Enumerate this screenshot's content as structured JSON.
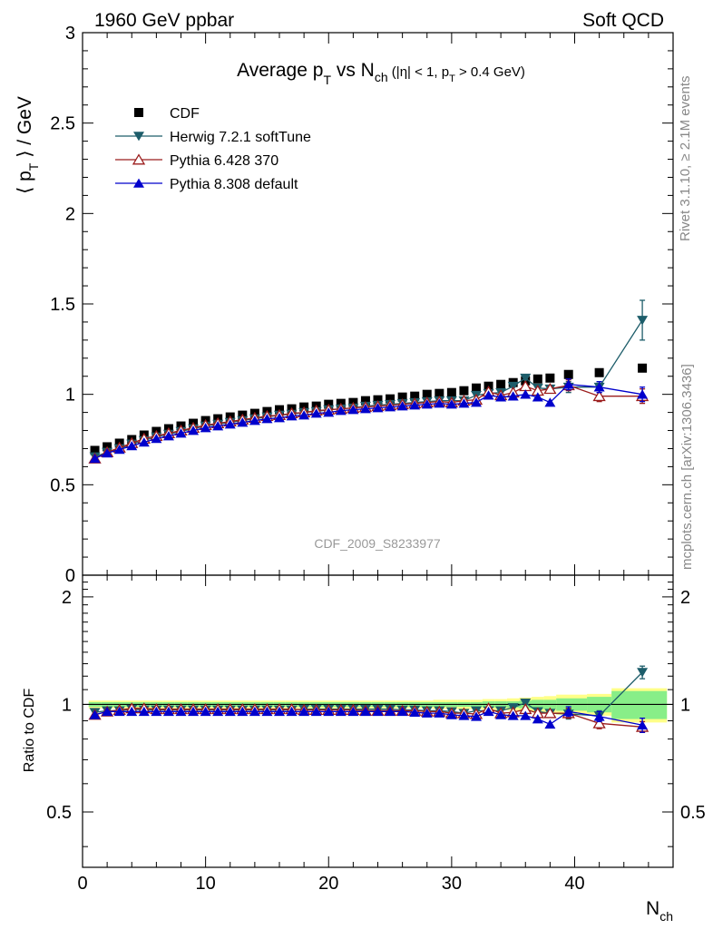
{
  "header": {
    "left": "1960 GeV ppbar",
    "right": "Soft QCD",
    "side_top": "Rivet 3.1.10, ≥ 2.1M events",
    "side_bottom": "mcplots.cern.ch [arXiv:1306.3436]",
    "watermark": "CDF_2009_S8233977"
  },
  "chart_data": [
    {
      "type": "scatter",
      "panel": "main",
      "title": "Average p_T vs N_ch (|η| < 1, p_T > 0.4 GeV)",
      "title_parts": {
        "main": "Average p",
        "sub1": "T",
        "mid": " vs N",
        "sub2": "ch",
        "cut": " (|η| < 1, p",
        "sub3": "T",
        "cut_end": " > 0.4 GeV)"
      },
      "ylabel": "⟨ p_T ⟩ / GeV",
      "ylim": [
        0,
        3
      ],
      "yticks": [
        "0",
        "0.5",
        "1",
        "1.5",
        "2",
        "2.5",
        "3"
      ],
      "xlim": [
        0,
        48
      ],
      "legend_placement": "top-left",
      "series": [
        {
          "name": "CDF",
          "marker": "square",
          "color": "#000000",
          "x": [
            1,
            2,
            3,
            4,
            5,
            6,
            7,
            8,
            9,
            10,
            11,
            12,
            13,
            14,
            15,
            16,
            17,
            18,
            19,
            20,
            21,
            22,
            23,
            24,
            25,
            26,
            27,
            28,
            29,
            30,
            31,
            32,
            33,
            34,
            35,
            36,
            37,
            38,
            39.5,
            42,
            45.5
          ],
          "y": [
            0.69,
            0.71,
            0.73,
            0.75,
            0.775,
            0.795,
            0.81,
            0.825,
            0.84,
            0.855,
            0.865,
            0.875,
            0.885,
            0.895,
            0.905,
            0.915,
            0.92,
            0.93,
            0.935,
            0.945,
            0.95,
            0.955,
            0.965,
            0.97,
            0.975,
            0.985,
            0.99,
            1.0,
            1.005,
            1.01,
            1.02,
            1.035,
            1.045,
            1.055,
            1.065,
            1.075,
            1.085,
            1.09,
            1.11,
            1.12,
            1.145
          ]
        },
        {
          "name": "Herwig 7.2.1 softTune",
          "marker": "triangle-down",
          "color": "#1d5d6a",
          "x": [
            1,
            2,
            3,
            4,
            5,
            6,
            7,
            8,
            9,
            10,
            11,
            12,
            13,
            14,
            15,
            16,
            17,
            18,
            19,
            20,
            21,
            22,
            23,
            24,
            25,
            26,
            27,
            28,
            29,
            30,
            31,
            32,
            33,
            34,
            35,
            36,
            37,
            38,
            39.5,
            42,
            45.5
          ],
          "y": [
            0.655,
            0.68,
            0.7,
            0.725,
            0.745,
            0.765,
            0.78,
            0.795,
            0.81,
            0.825,
            0.835,
            0.845,
            0.855,
            0.865,
            0.875,
            0.885,
            0.89,
            0.9,
            0.905,
            0.915,
            0.92,
            0.925,
            0.935,
            0.94,
            0.945,
            0.95,
            0.955,
            0.96,
            0.965,
            0.965,
            0.965,
            0.995,
            1.005,
            1.01,
            1.045,
            1.09,
            1.035,
            1.03,
            1.04,
            1.04,
            1.41
          ],
          "yerr": [
            0,
            0,
            0,
            0,
            0,
            0,
            0,
            0,
            0,
            0,
            0,
            0,
            0,
            0,
            0,
            0,
            0,
            0,
            0,
            0,
            0,
            0,
            0,
            0,
            0,
            0,
            0,
            0,
            0,
            0,
            0,
            0,
            0,
            0,
            0,
            0,
            0,
            0,
            0.03,
            0.03,
            0.11
          ]
        },
        {
          "name": "Pythia 6.428 370",
          "marker": "triangle-up-open",
          "color": "#9b1c1c",
          "x": [
            1,
            2,
            3,
            4,
            5,
            6,
            7,
            8,
            9,
            10,
            11,
            12,
            13,
            14,
            15,
            16,
            17,
            18,
            19,
            20,
            21,
            22,
            23,
            24,
            25,
            26,
            27,
            28,
            29,
            30,
            31,
            32,
            33,
            34,
            35,
            36,
            37,
            38,
            39.5,
            42,
            45.5
          ],
          "y": [
            0.645,
            0.68,
            0.705,
            0.73,
            0.755,
            0.77,
            0.785,
            0.8,
            0.815,
            0.83,
            0.84,
            0.85,
            0.86,
            0.87,
            0.88,
            0.885,
            0.895,
            0.9,
            0.91,
            0.915,
            0.92,
            0.925,
            0.93,
            0.935,
            0.94,
            0.945,
            0.95,
            0.955,
            0.96,
            0.955,
            0.965,
            0.97,
            1.015,
            0.995,
            1.01,
            1.045,
            1.02,
            1.03,
            1.05,
            0.99,
            0.99
          ],
          "yerr": [
            0,
            0,
            0,
            0,
            0,
            0,
            0,
            0,
            0,
            0,
            0,
            0,
            0,
            0,
            0,
            0,
            0,
            0,
            0,
            0,
            0,
            0,
            0,
            0,
            0,
            0,
            0,
            0,
            0,
            0,
            0,
            0,
            0,
            0,
            0,
            0,
            0,
            0,
            0.03,
            0.03,
            0.04
          ]
        },
        {
          "name": "Pythia 8.308 default",
          "marker": "triangle-up",
          "color": "#0000cc",
          "x": [
            1,
            2,
            3,
            4,
            5,
            6,
            7,
            8,
            9,
            10,
            11,
            12,
            13,
            14,
            15,
            16,
            17,
            18,
            19,
            20,
            21,
            22,
            23,
            24,
            25,
            26,
            27,
            28,
            29,
            30,
            31,
            32,
            33,
            34,
            35,
            36,
            37,
            38,
            39.5,
            42,
            45.5
          ],
          "y": [
            0.645,
            0.675,
            0.695,
            0.715,
            0.735,
            0.755,
            0.77,
            0.785,
            0.8,
            0.815,
            0.825,
            0.835,
            0.845,
            0.855,
            0.865,
            0.87,
            0.88,
            0.885,
            0.895,
            0.9,
            0.91,
            0.915,
            0.92,
            0.925,
            0.93,
            0.935,
            0.94,
            0.945,
            0.95,
            0.945,
            0.95,
            0.955,
            0.995,
            0.985,
            0.99,
            1.0,
            0.985,
            0.955,
            1.055,
            1.04,
            1.0
          ],
          "yerr": [
            0,
            0,
            0,
            0,
            0,
            0,
            0,
            0,
            0,
            0,
            0,
            0,
            0,
            0,
            0,
            0,
            0,
            0,
            0,
            0,
            0,
            0,
            0,
            0,
            0,
            0,
            0,
            0,
            0,
            0,
            0,
            0,
            0,
            0,
            0,
            0,
            0,
            0,
            0.03,
            0.03,
            0.04
          ]
        }
      ]
    },
    {
      "type": "scatter",
      "panel": "ratio",
      "ylabel": "Ratio to CDF",
      "xlabel": "N_ch",
      "ylim": [
        0.35,
        2.3
      ],
      "yticks": [
        "0.5",
        "1",
        "2"
      ],
      "xlim": [
        0,
        48
      ],
      "xticks": [
        "0",
        "10",
        "20",
        "30",
        "40"
      ],
      "reference_line": 1,
      "bands": {
        "x_edges": [
          0.5,
          1.5,
          2.5,
          3.5,
          4.5,
          5.5,
          6.5,
          7.5,
          8.5,
          9.5,
          10.5,
          11.5,
          12.5,
          13.5,
          14.5,
          15.5,
          16.5,
          17.5,
          18.5,
          19.5,
          20.5,
          21.5,
          22.5,
          23.5,
          24.5,
          25.5,
          26.5,
          27.5,
          28.5,
          29.5,
          30.5,
          31.5,
          32.5,
          33.5,
          34.5,
          35.5,
          36.5,
          37.5,
          38.5,
          41,
          43,
          47.5
        ],
        "stat": [
          0.015,
          0.015,
          0.015,
          0.015,
          0.015,
          0.015,
          0.015,
          0.015,
          0.015,
          0.015,
          0.015,
          0.015,
          0.015,
          0.015,
          0.015,
          0.015,
          0.015,
          0.015,
          0.015,
          0.015,
          0.015,
          0.015,
          0.015,
          0.015,
          0.015,
          0.015,
          0.015,
          0.015,
          0.015,
          0.015,
          0.015,
          0.015,
          0.02,
          0.02,
          0.02,
          0.025,
          0.03,
          0.03,
          0.04,
          0.05,
          0.09
        ],
        "total": [
          0.025,
          0.025,
          0.025,
          0.025,
          0.025,
          0.025,
          0.025,
          0.025,
          0.025,
          0.025,
          0.025,
          0.025,
          0.025,
          0.025,
          0.025,
          0.025,
          0.025,
          0.025,
          0.025,
          0.025,
          0.025,
          0.025,
          0.025,
          0.025,
          0.025,
          0.025,
          0.025,
          0.025,
          0.03,
          0.03,
          0.03,
          0.03,
          0.035,
          0.035,
          0.04,
          0.045,
          0.05,
          0.055,
          0.065,
          0.07,
          0.11
        ],
        "stat_color": "#88ee88",
        "total_color": "#ffff88"
      },
      "series": [
        {
          "name": "Herwig 7.2.1 softTune",
          "marker": "triangle-down",
          "color": "#1d5d6a",
          "x": [
            1,
            2,
            3,
            4,
            5,
            6,
            7,
            8,
            9,
            10,
            11,
            12,
            13,
            14,
            15,
            16,
            17,
            18,
            19,
            20,
            21,
            22,
            23,
            24,
            25,
            26,
            27,
            28,
            29,
            30,
            31,
            32,
            33,
            34,
            35,
            36,
            37,
            38,
            39.5,
            42,
            45.5
          ],
          "y": [
            0.95,
            0.96,
            0.96,
            0.97,
            0.965,
            0.965,
            0.965,
            0.965,
            0.965,
            0.965,
            0.965,
            0.965,
            0.965,
            0.965,
            0.965,
            0.965,
            0.965,
            0.97,
            0.97,
            0.97,
            0.97,
            0.97,
            0.97,
            0.97,
            0.97,
            0.965,
            0.965,
            0.96,
            0.96,
            0.955,
            0.945,
            0.96,
            0.96,
            0.96,
            0.98,
            1.01,
            0.955,
            0.945,
            0.94,
            0.93,
            1.23
          ],
          "yerr": [
            0,
            0,
            0,
            0,
            0,
            0,
            0,
            0,
            0,
            0,
            0,
            0,
            0,
            0,
            0,
            0,
            0,
            0,
            0,
            0,
            0,
            0,
            0,
            0,
            0,
            0,
            0,
            0,
            0,
            0,
            0,
            0,
            0,
            0,
            0,
            0,
            0,
            0,
            0.03,
            0.03,
            0.05
          ]
        },
        {
          "name": "Pythia 6.428 370",
          "marker": "triangle-up-open",
          "color": "#9b1c1c",
          "x": [
            1,
            2,
            3,
            4,
            5,
            6,
            7,
            8,
            9,
            10,
            11,
            12,
            13,
            14,
            15,
            16,
            17,
            18,
            19,
            20,
            21,
            22,
            23,
            24,
            25,
            26,
            27,
            28,
            29,
            30,
            31,
            32,
            33,
            34,
            35,
            36,
            37,
            38,
            39.5,
            42,
            45.5
          ],
          "y": [
            0.935,
            0.955,
            0.965,
            0.975,
            0.975,
            0.97,
            0.97,
            0.97,
            0.97,
            0.97,
            0.97,
            0.97,
            0.97,
            0.97,
            0.97,
            0.97,
            0.97,
            0.965,
            0.965,
            0.965,
            0.965,
            0.965,
            0.96,
            0.96,
            0.96,
            0.96,
            0.96,
            0.955,
            0.955,
            0.945,
            0.945,
            0.94,
            0.975,
            0.945,
            0.95,
            0.97,
            0.945,
            0.945,
            0.945,
            0.885,
            0.865
          ],
          "yerr": [
            0,
            0,
            0,
            0,
            0,
            0,
            0,
            0,
            0,
            0,
            0,
            0,
            0,
            0,
            0,
            0,
            0,
            0,
            0,
            0,
            0,
            0,
            0,
            0,
            0,
            0,
            0,
            0,
            0,
            0,
            0,
            0,
            0,
            0,
            0,
            0,
            0,
            0,
            0.03,
            0.03,
            0.03
          ]
        },
        {
          "name": "Pythia 8.308 default",
          "marker": "triangle-up",
          "color": "#0000cc",
          "x": [
            1,
            2,
            3,
            4,
            5,
            6,
            7,
            8,
            9,
            10,
            11,
            12,
            13,
            14,
            15,
            16,
            17,
            18,
            19,
            20,
            21,
            22,
            23,
            24,
            25,
            26,
            27,
            28,
            29,
            30,
            31,
            32,
            33,
            34,
            35,
            36,
            37,
            38,
            39.5,
            42,
            45.5
          ],
          "y": [
            0.935,
            0.955,
            0.955,
            0.955,
            0.955,
            0.955,
            0.955,
            0.955,
            0.955,
            0.955,
            0.955,
            0.955,
            0.955,
            0.955,
            0.955,
            0.955,
            0.955,
            0.955,
            0.955,
            0.955,
            0.955,
            0.955,
            0.955,
            0.955,
            0.955,
            0.955,
            0.95,
            0.945,
            0.945,
            0.935,
            0.93,
            0.925,
            0.955,
            0.935,
            0.93,
            0.93,
            0.91,
            0.88,
            0.955,
            0.925,
            0.875
          ],
          "yerr": [
            0,
            0,
            0,
            0,
            0,
            0,
            0,
            0,
            0,
            0,
            0,
            0,
            0,
            0,
            0,
            0,
            0,
            0,
            0,
            0,
            0,
            0,
            0,
            0,
            0,
            0,
            0,
            0,
            0,
            0,
            0,
            0,
            0,
            0,
            0,
            0,
            0,
            0,
            0.03,
            0.03,
            0.04
          ]
        }
      ]
    }
  ]
}
